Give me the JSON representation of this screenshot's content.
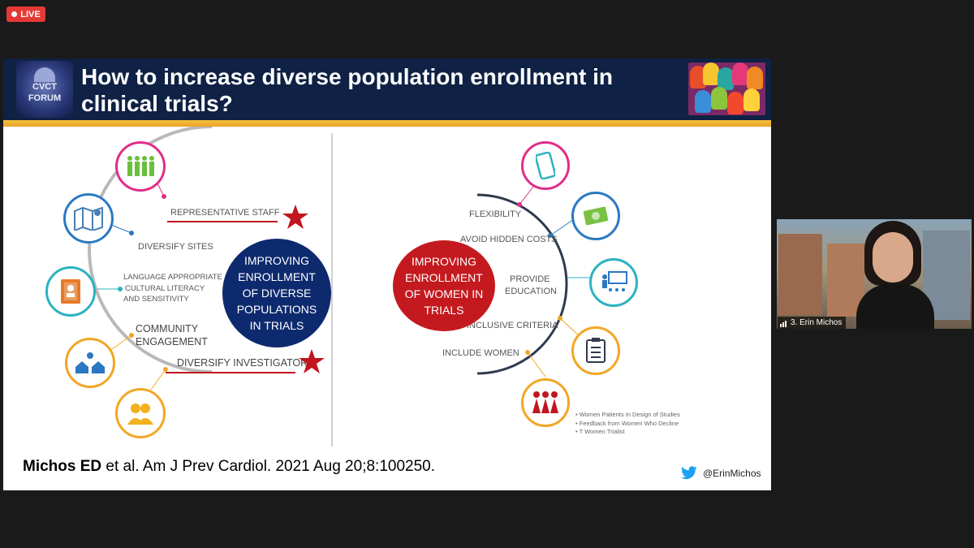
{
  "live_badge": "LIVE",
  "slide": {
    "logo_lines": [
      "CVCT",
      "FORUM"
    ],
    "title": "How to increase diverse population enrollment in clinical trials?",
    "left": {
      "center": "IMPROVING ENROLLMENT OF DIVERSE POPULATIONS IN TRIALS",
      "labels": {
        "representative_staff": "REPRESENTATIVE STAFF",
        "diversify_sites": "DIVERSIFY SITES",
        "language_line1": "LANGUAGE APPROPRIATE",
        "language_line2": "CULTURAL LITERACY",
        "language_line3": "AND SENSITIVITY",
        "community_line1": "COMMUNITY",
        "community_line2": "ENGAGEMENT",
        "diversify_investigators": "DIVERSIFY INVESTIGATORS"
      }
    },
    "right": {
      "center": "IMPROVING ENROLLMENT OF WOMEN IN TRIALS",
      "labels": {
        "flexibility": "FLEXIBILITY",
        "hidden_costs": "AVOID HIDDEN COSTS",
        "provide": "PROVIDE",
        "education": "EDUCATION",
        "inclusive": "INCLUSIVE CRITERIA",
        "include_women": "INCLUDE WOMEN"
      },
      "bullets": [
        "Women Patients In Design of Studies",
        "Feedback from Women Who Decline",
        "T Women Trialist"
      ]
    },
    "citation_bold": "Michos ED",
    "citation_rest": " et al. Am J Prev Cardiol. 2021 Aug 20;8:100250.",
    "twitter_handle": "@ErinMichos"
  },
  "video": {
    "participant_name": "3. Erin Michos"
  },
  "colors": {
    "live_red": "#e53935",
    "header_navy": "#0f2144",
    "accent_gold": "#f2b634",
    "star_red": "#c0161e",
    "left_center_navy": "#0e2a6e",
    "right_center_red": "#c41a1f"
  }
}
